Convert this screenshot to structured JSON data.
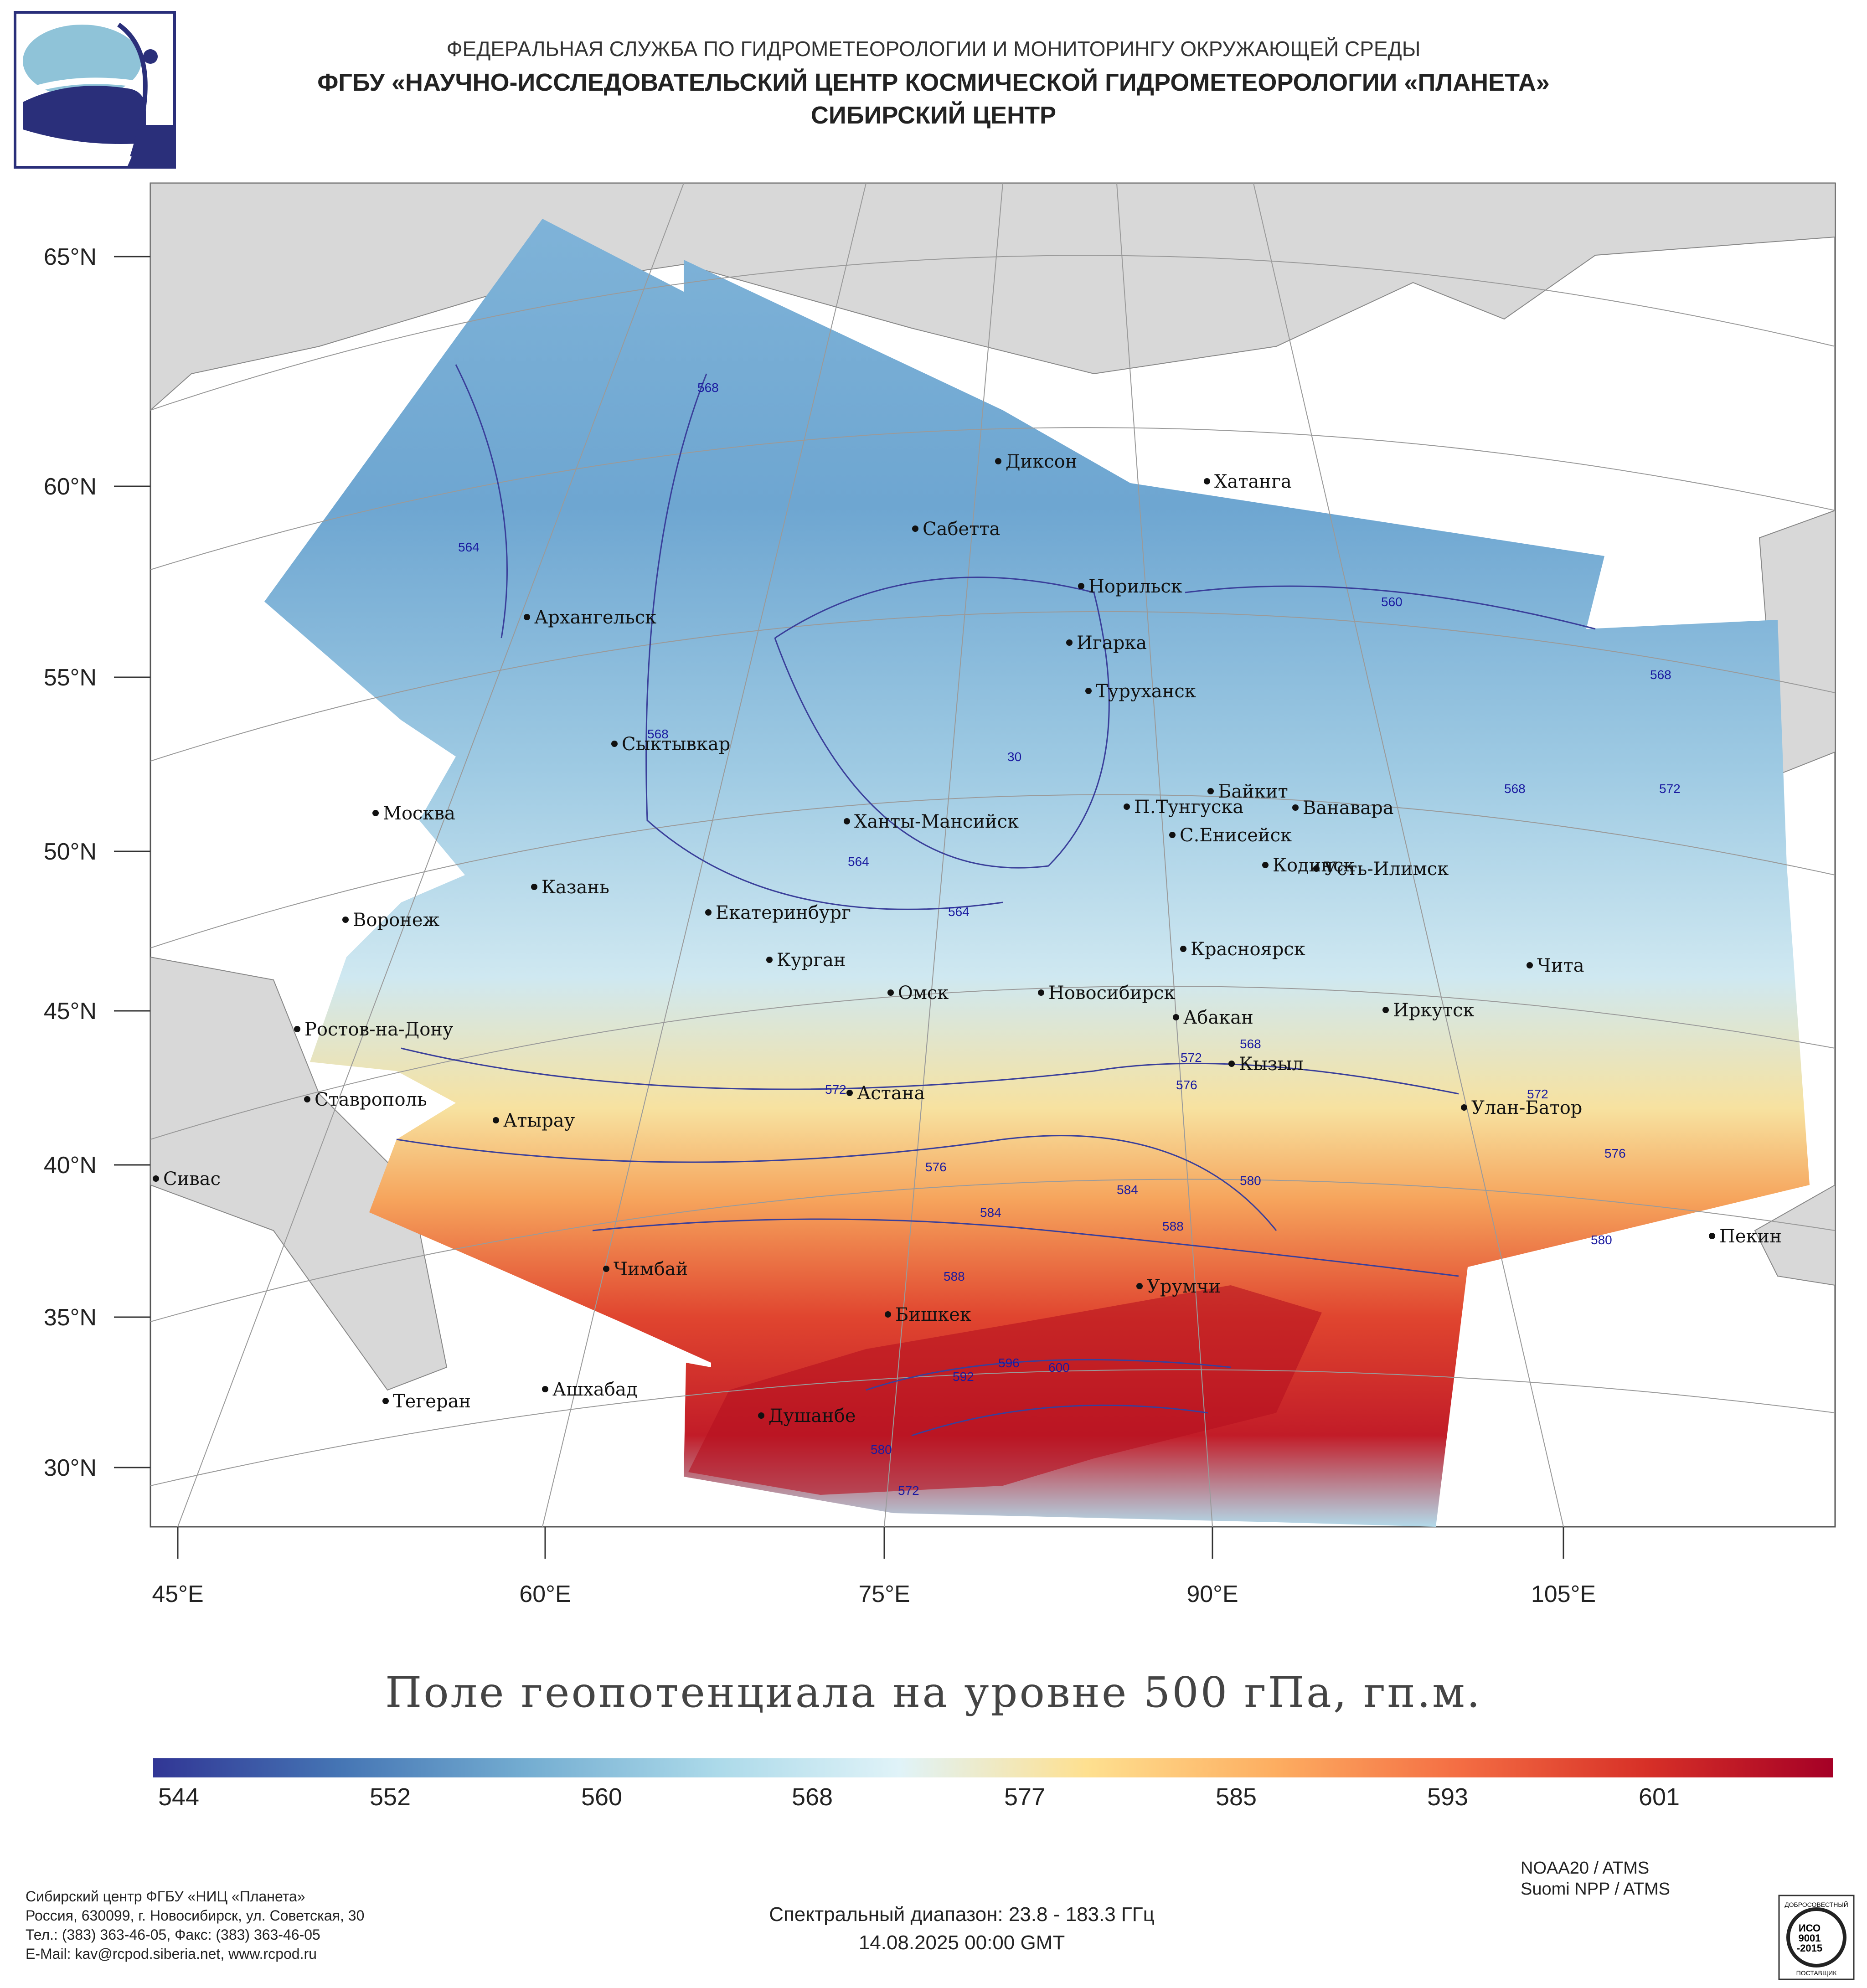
{
  "header": {
    "agency": "ФЕДЕРАЛЬНАЯ СЛУЖБА ПО ГИДРОМЕТЕОРОЛОГИИ И МОНИТОРИНГУ ОКРУЖАЮЩЕЙ СРЕДЫ",
    "institute": "ФГБУ «НАУЧНО-ИССЛЕДОВАТЕЛЬСКИЙ ЦЕНТР КОСМИЧЕСКОЙ ГИДРОМЕТЕОРОЛОГИИ «ПЛАНЕТА»",
    "center": "СИБИРСКИЙ ЦЕНТР"
  },
  "map": {
    "latitude_labels": [
      "65°N",
      "60°N",
      "55°N",
      "50°N",
      "45°N",
      "40°N",
      "35°N",
      "30°N"
    ],
    "longitude_labels": [
      "45°E",
      "60°E",
      "75°E",
      "90°E",
      "105°E"
    ],
    "cities": [
      "Диксон",
      "Хатанга",
      "Сабетта",
      "Норильск",
      "Архангельск",
      "Игарка",
      "Туруханск",
      "Сыктывкар",
      "Байкит",
      "Москва",
      "П.Тунгуска",
      "Ванавара",
      "Ханты-Мансийск",
      "С.Енисейск",
      "Кодинск",
      "Усть-Илимск",
      "Казань",
      "Екатеринбург",
      "Воронеж",
      "Красноярск",
      "Курган",
      "Чита",
      "Омск",
      "Новосибирск",
      "Ростов-на-Дону",
      "Абакан",
      "Иркутск",
      "Кызыл",
      "Ставрополь",
      "Астана",
      "Улан-Батор",
      "Атырау",
      "Сивас",
      "Пекин",
      "Чимбай",
      "Урумчи",
      "Бишкек",
      "Ашхабад",
      "Тегеран",
      "Душанбе"
    ],
    "contour_labels": [
      "568",
      "564",
      "568",
      "564",
      "564",
      "30",
      "560",
      "568",
      "568",
      "572",
      "572",
      "568",
      "576",
      "572",
      "572",
      "576",
      "576",
      "580",
      "584",
      "584",
      "588",
      "588",
      "592",
      "596",
      "600",
      "580",
      "580",
      "572"
    ]
  },
  "title": "Поле геопотенциала на уровне 500 гПа, гп.м.",
  "colorbar": {
    "ticks": [
      "544",
      "552",
      "560",
      "568",
      "577",
      "585",
      "593",
      "601"
    ],
    "colors": [
      "#313695",
      "#4575b4",
      "#74add1",
      "#abd9e9",
      "#e0f3f8",
      "#fee090",
      "#fdae61",
      "#f46d43",
      "#d73027",
      "#a50026"
    ]
  },
  "footer": {
    "address": [
      "Сибирский центр ФГБУ «НИЦ «Планета»",
      "Россия, 630099, г. Новосибирск, ул. Советская, 30",
      "Тел.: (383) 363-46-05, Факс: (383) 363-46-05",
      "E-Mail: kav@rcpod.siberia.net, www.rcpod.ru"
    ],
    "satellites": [
      "NOAA20 / ATMS",
      "Suomi NPP / ATMS"
    ],
    "spectral_range": "Спектральный диапазон: 23.8 - 183.3 ГГц",
    "datetime": "14.08.2025 00:00 GMT",
    "cert": [
      "ДОБРОСОВЕСТНЫЙ",
      "ИСО",
      "9001",
      "-2015",
      "ПОСТАВЩИК"
    ]
  }
}
